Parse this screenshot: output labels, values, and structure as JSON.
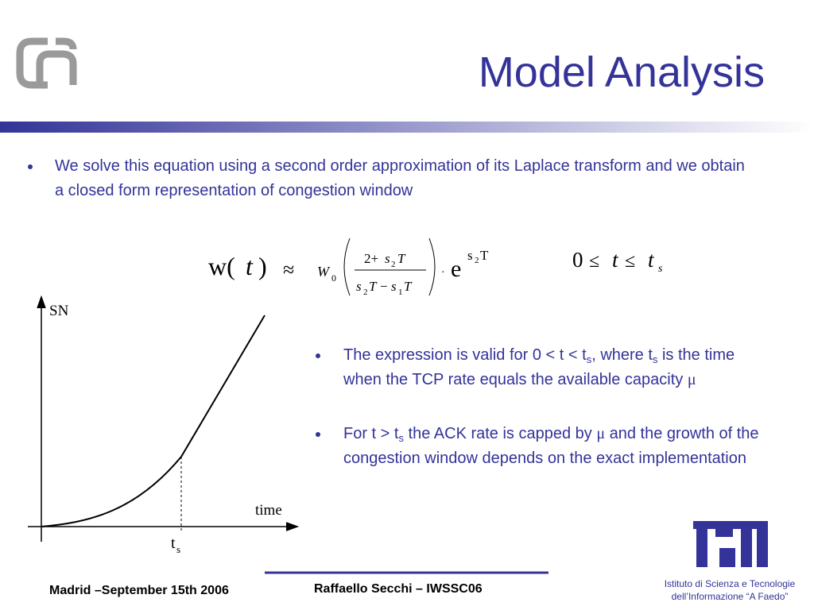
{
  "header": {
    "title": "Model Analysis"
  },
  "intro": {
    "bullet": "We solve this equation using a second order approximation of its Laplace transform and we obtain a closed form representation of congestion window"
  },
  "equation": {
    "formula": [
      "w(",
      "t",
      ")",
      "≈",
      "W",
      "0",
      "2+",
      "s",
      "2",
      "T",
      "s",
      "2",
      "T",
      "−",
      "s",
      "1",
      "T",
      "·",
      "e",
      "s",
      "2",
      "T"
    ],
    "range": [
      "0",
      "≤",
      "t",
      "≤",
      "t",
      "s"
    ]
  },
  "graph": {
    "y_label": "SN",
    "x_label": "time",
    "marker": [
      "t",
      "s"
    ]
  },
  "notes": {
    "bullets": [
      [
        "The expression is valid for 0 < t < t",
        "s",
        ", where t",
        "s",
        " is the time when the TCP rate equals the available capacity ",
        "μ"
      ],
      [
        "For t > t",
        "s",
        " the ACK rate is capped by ",
        "μ",
        " and the growth of the congestion window depends on the exact implementation"
      ]
    ]
  },
  "footer": {
    "left": "Madrid –September 15th 2006",
    "center": "Raffaello Secchi – IWSSC06",
    "institute": [
      "Istituto di Scienza e Tecnologie",
      "dell’Informazione “A Faedo”"
    ]
  }
}
